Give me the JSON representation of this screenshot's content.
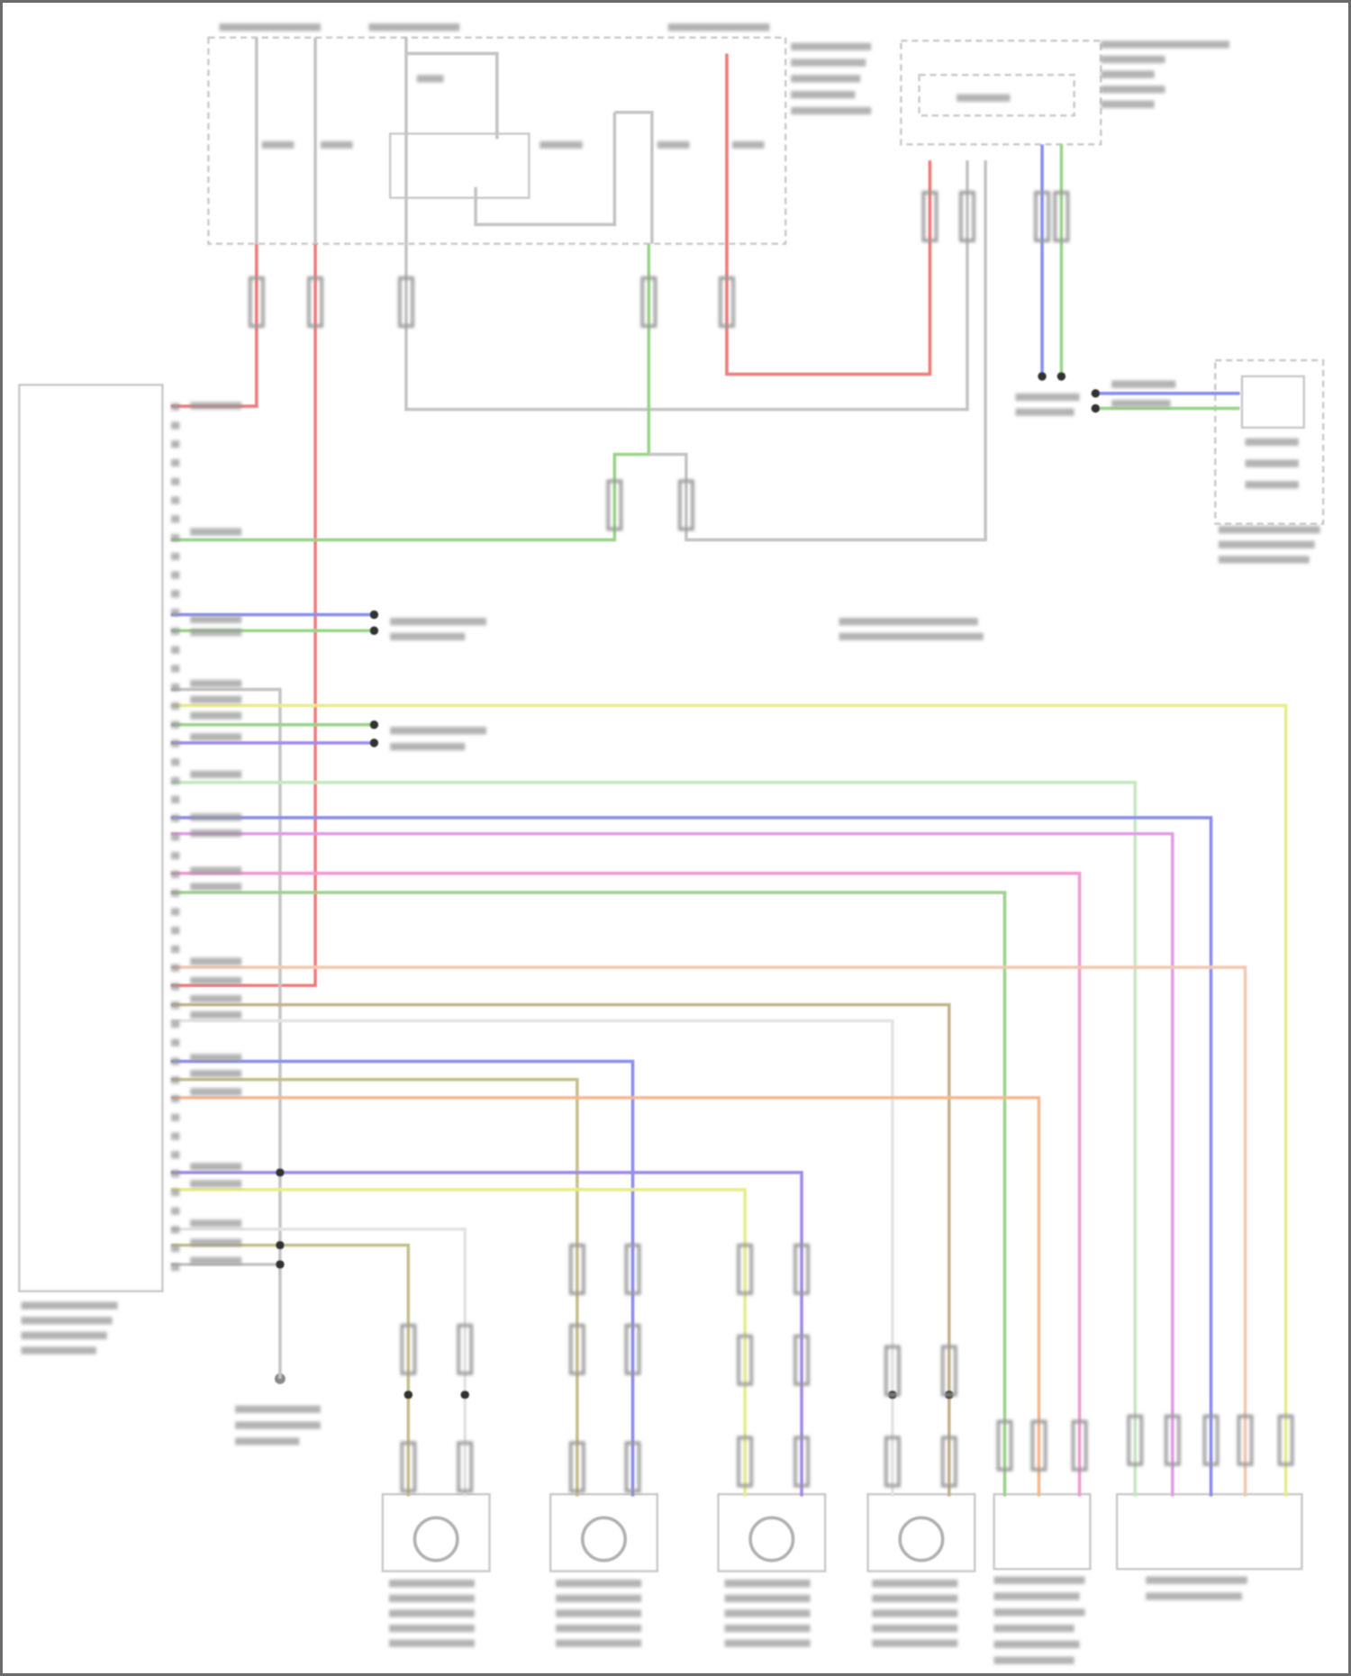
{
  "diagram": {
    "type": "wiring-schematic",
    "legibility": "blurred",
    "colors": {
      "frame": "#6b6b6b",
      "outline": "#c8c8c8",
      "label_blur": "#9a9a9a",
      "red": "#f07a7a",
      "gray": "#c4c4c4",
      "green": "#9ad48a",
      "blue": "#8a8cf0",
      "yellow": "#e8ec8a",
      "light_green": "#c4e8c0",
      "magenta": "#e49ae8",
      "pink": "#f39ad0",
      "peach": "#f3c8b0",
      "tan": "#c4b48a",
      "light_gray": "#e4e4e4",
      "olive": "#c8c08a",
      "orange": "#f5b890",
      "purple": "#a08ae8"
    },
    "components": {
      "fuse_box": 1,
      "top_right_module": 1,
      "left_control_module": 1,
      "right_sensor": 1,
      "wheel_speed_sensors": 4,
      "bottom_switch_modules": 2,
      "ground_points": 1
    }
  }
}
